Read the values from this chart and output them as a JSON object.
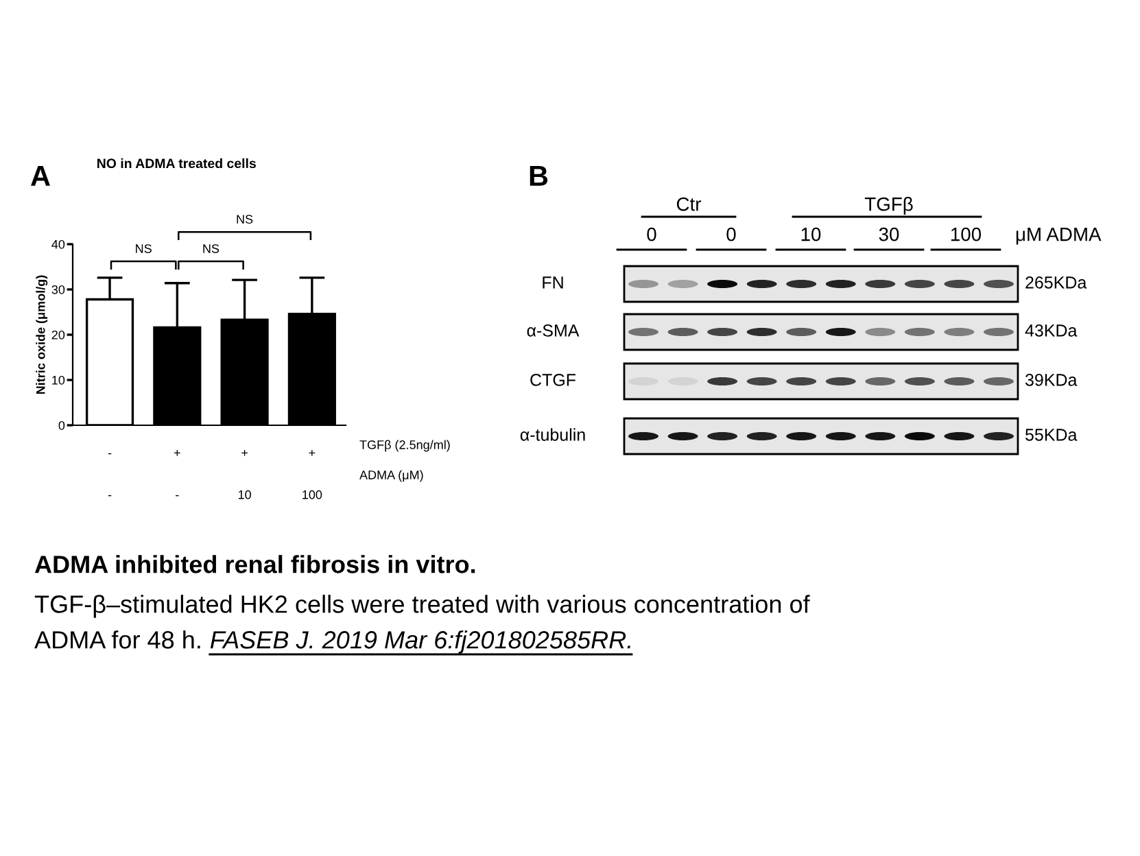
{
  "chart_data": [
    {
      "type": "bar",
      "title": "NO in ADMA treated cells",
      "ylabel": "Nitric oxide (μmol/g)",
      "categories": [
        "-\n-",
        "+\n-",
        "+\n10",
        "+\n100"
      ],
      "values": [
        27.8,
        21.6,
        23.3,
        24.6
      ],
      "colors": [
        "#ffffff",
        "#000000",
        "#000000",
        "#000000"
      ],
      "errors": [
        [
          27.8,
          32.6
        ],
        [
          21.6,
          31.4
        ],
        [
          23.3,
          32.1
        ],
        [
          24.6,
          32.6
        ]
      ],
      "ylim": [
        0,
        40
      ],
      "yticks": [
        0,
        10,
        20,
        30,
        40
      ],
      "annotations": [
        "A",
        "TGFβ (2.5ng/ml)",
        "ADMA (μM)",
        "NS",
        "NS",
        "NS",
        "ADMA inhibited renal fibrosis in vitro.",
        "TGF-β–stimulated HK2 cells were treated with various concentration of",
        "ADMA for 48 h.",
        "FASEB J. 2019 Mar 6:fj201802585RR."
      ]
    },
    {
      "type": "other",
      "annotations": [
        "B",
        "Ctr",
        "TGFβ",
        "0",
        "0",
        "10",
        "30",
        "100",
        "μM ADMA",
        "FN",
        "α-SMA",
        "CTGF",
        "α-tubulin",
        "265KDa",
        "43KDa",
        "39KDa",
        "55KDa"
      ]
    }
  ]
}
